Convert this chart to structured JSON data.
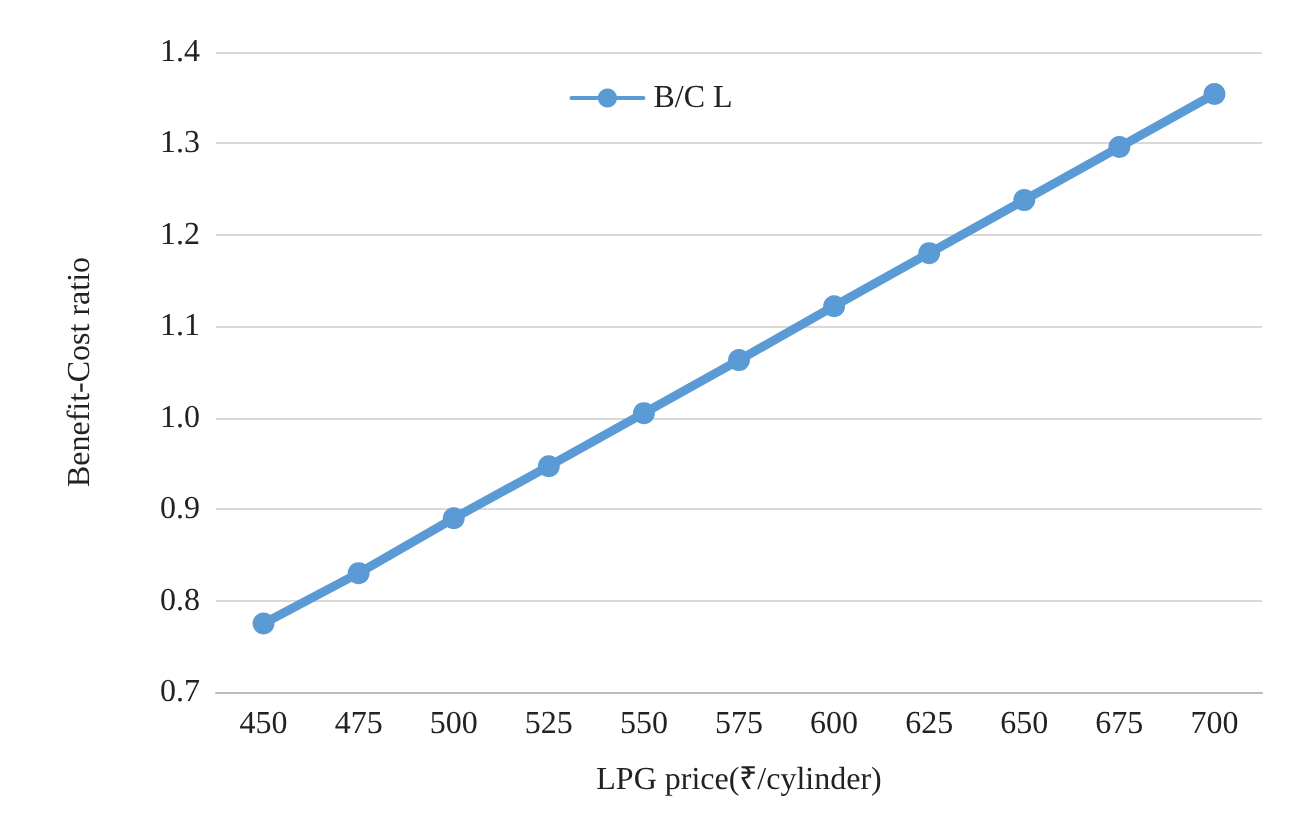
{
  "chart_data": {
    "type": "line",
    "xlabel": "LPG price(₹/cylinder)",
    "ylabel": "Benefit-Cost ratio",
    "categories": [
      "450",
      "475",
      "500",
      "525",
      "550",
      "575",
      "600",
      "625",
      "650",
      "675",
      "700"
    ],
    "series": [
      {
        "name": "B/C L",
        "color": "#5b9bd5",
        "values": [
          0.775,
          0.83,
          0.89,
          0.947,
          1.005,
          1.063,
          1.122,
          1.18,
          1.238,
          1.296,
          1.354
        ]
      }
    ],
    "ylim": [
      0.7,
      1.4
    ],
    "yticks": [
      {
        "value": 0.7,
        "label": "0.7"
      },
      {
        "value": 0.8,
        "label": "0.8"
      },
      {
        "value": 0.9,
        "label": "0.9"
      },
      {
        "value": 1,
        "label": "1.0"
      },
      {
        "value": 1.1,
        "label": "1.1"
      },
      {
        "value": 1.2,
        "label": "1.2"
      },
      {
        "value": 1.3,
        "label": "1.3"
      },
      {
        "value": 1.4,
        "label": "1.4"
      }
    ],
    "grid": "y",
    "legend": "top",
    "marker": "circle",
    "line_style": "solid"
  }
}
